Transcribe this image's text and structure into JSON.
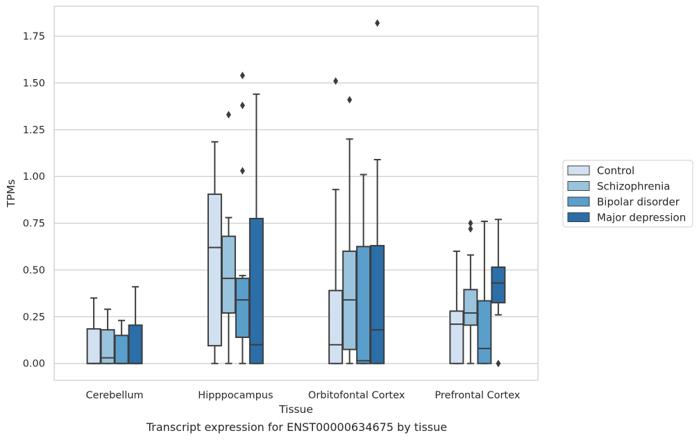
{
  "caption": "Transcript expression for ENST00000634675 by tissue",
  "chart_data": {
    "type": "box",
    "xlabel": "Tissue",
    "ylabel": "TPMs",
    "ylim": [
      -0.09,
      1.91
    ],
    "yticks": [
      0.0,
      0.25,
      0.5,
      0.75,
      1.0,
      1.25,
      1.5,
      1.75
    ],
    "ytick_labels": [
      "0.00",
      "0.25",
      "0.50",
      "0.75",
      "1.00",
      "1.25",
      "1.50",
      "1.75"
    ],
    "grid": "horizontal",
    "legend_position": "right",
    "categories": [
      "Cerebellum",
      "Hipppocampus",
      "Orbitofontal Cortex",
      "Prefrontal Cortex"
    ],
    "series": [
      {
        "name": "Control",
        "color": "#d1e1f1",
        "boxes": [
          {
            "whislo": 0.0,
            "q1": 0.0,
            "med": 0.0,
            "q3": 0.185,
            "whishi": 0.35,
            "fliers": []
          },
          {
            "whislo": 0.0,
            "q1": 0.095,
            "med": 0.62,
            "q3": 0.905,
            "whishi": 1.185,
            "fliers": []
          },
          {
            "whislo": 0.0,
            "q1": 0.0,
            "med": 0.1,
            "q3": 0.39,
            "whishi": 0.93,
            "fliers": [
              1.51
            ]
          },
          {
            "whislo": 0.0,
            "q1": 0.0,
            "med": 0.21,
            "q3": 0.28,
            "whishi": 0.6,
            "fliers": []
          }
        ]
      },
      {
        "name": "Schizophrenia",
        "color": "#9ac4dd",
        "boxes": [
          {
            "whislo": 0.0,
            "q1": 0.0,
            "med": 0.03,
            "q3": 0.18,
            "whishi": 0.29,
            "fliers": []
          },
          {
            "whislo": 0.0,
            "q1": 0.27,
            "med": 0.455,
            "q3": 0.68,
            "whishi": 0.78,
            "fliers": [
              1.33
            ]
          },
          {
            "whislo": 0.0,
            "q1": 0.075,
            "med": 0.34,
            "q3": 0.6,
            "whishi": 1.2,
            "fliers": [
              1.41
            ]
          },
          {
            "whislo": 0.0,
            "q1": 0.205,
            "med": 0.27,
            "q3": 0.395,
            "whishi": 0.58,
            "fliers": [
              0.72,
              0.75
            ]
          }
        ]
      },
      {
        "name": "Bipolar disorder",
        "color": "#5a9ecc",
        "boxes": [
          {
            "whislo": 0.0,
            "q1": 0.0,
            "med": 0.0,
            "q3": 0.15,
            "whishi": 0.23,
            "fliers": []
          },
          {
            "whislo": 0.0,
            "q1": 0.14,
            "med": 0.34,
            "q3": 0.455,
            "whishi": 0.47,
            "fliers": [
              1.03,
              1.38,
              1.54
            ]
          },
          {
            "whislo": 0.0,
            "q1": 0.0,
            "med": 0.015,
            "q3": 0.625,
            "whishi": 1.01,
            "fliers": []
          },
          {
            "whislo": 0.0,
            "q1": 0.0,
            "med": 0.08,
            "q3": 0.335,
            "whishi": 0.76,
            "fliers": []
          }
        ]
      },
      {
        "name": "Major depression",
        "color": "#2b6ea8",
        "boxes": [
          {
            "whislo": 0.0,
            "q1": 0.0,
            "med": 0.0,
            "q3": 0.205,
            "whishi": 0.41,
            "fliers": []
          },
          {
            "whislo": 0.0,
            "q1": 0.0,
            "med": 0.1,
            "q3": 0.775,
            "whishi": 1.44,
            "fliers": []
          },
          {
            "whislo": 0.0,
            "q1": 0.0,
            "med": 0.18,
            "q3": 0.63,
            "whishi": 1.09,
            "fliers": [
              1.82
            ]
          },
          {
            "whislo": 0.26,
            "q1": 0.325,
            "med": 0.43,
            "q3": 0.515,
            "whishi": 0.77,
            "fliers": [
              0.0
            ]
          }
        ]
      }
    ]
  }
}
